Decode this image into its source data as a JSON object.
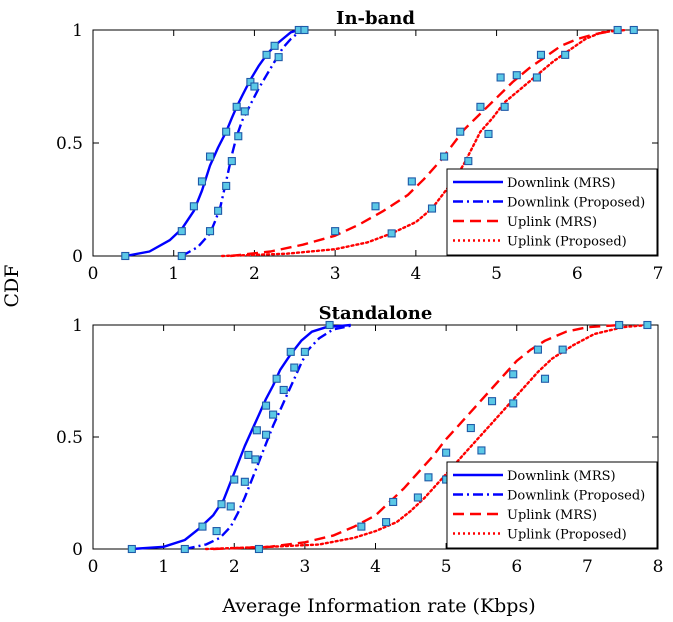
{
  "figure": {
    "ylabel": "CDF",
    "xlabel": "Average Information rate (Kbps)"
  },
  "chart_data": [
    {
      "type": "line",
      "title": "In-band",
      "xlabel": "",
      "ylabel": "CDF",
      "xlim": [
        0,
        7
      ],
      "ylim": [
        0,
        1
      ],
      "xticks": [
        0,
        1,
        2,
        3,
        4,
        5,
        6,
        7
      ],
      "yticks": [
        0,
        0.5,
        1
      ],
      "ytick_labels": [
        "0",
        "0.5",
        "1"
      ],
      "grid": false,
      "legend_position": "bottom-right",
      "marker_color": "#5bc8e6",
      "series": [
        {
          "name": "Downlink (MRS)",
          "color": "#0000ff",
          "style": "solid",
          "x": [
            0.4,
            0.7,
            0.95,
            1.1,
            1.25,
            1.35,
            1.45,
            1.55,
            1.65,
            1.72,
            1.78,
            1.85,
            1.95,
            2.05,
            2.15,
            2.25,
            2.35,
            2.45,
            2.55
          ],
          "y": [
            0.0,
            0.02,
            0.07,
            0.12,
            0.2,
            0.29,
            0.4,
            0.48,
            0.55,
            0.61,
            0.66,
            0.71,
            0.78,
            0.84,
            0.89,
            0.93,
            0.96,
            0.99,
            1.0
          ],
          "marker_x": [
            0.4,
            1.1,
            1.25,
            1.35,
            1.45,
            1.65,
            1.78,
            1.95,
            2.15,
            2.25,
            2.55
          ],
          "marker_y": [
            0.0,
            0.11,
            0.22,
            0.33,
            0.44,
            0.55,
            0.66,
            0.77,
            0.89,
            0.93,
            1.0
          ]
        },
        {
          "name": "Downlink (Proposed)",
          "color": "#0000ff",
          "style": "dashdot",
          "x": [
            1.1,
            1.3,
            1.45,
            1.52,
            1.58,
            1.63,
            1.68,
            1.73,
            1.78,
            1.85,
            1.95,
            2.05,
            2.15,
            2.25,
            2.35,
            2.45,
            2.55,
            2.62
          ],
          "y": [
            0.0,
            0.04,
            0.1,
            0.16,
            0.22,
            0.3,
            0.38,
            0.46,
            0.53,
            0.6,
            0.67,
            0.74,
            0.8,
            0.86,
            0.92,
            0.96,
            0.99,
            1.0
          ],
          "marker_x": [
            1.1,
            1.45,
            1.55,
            1.65,
            1.72,
            1.8,
            1.88,
            2.0,
            2.3,
            2.62
          ],
          "marker_y": [
            0.0,
            0.11,
            0.2,
            0.31,
            0.42,
            0.53,
            0.64,
            0.75,
            0.88,
            1.0
          ]
        },
        {
          "name": "Uplink (MRS)",
          "color": "#ff0000",
          "style": "dash",
          "x": [
            1.7,
            2.2,
            2.6,
            3.0,
            3.3,
            3.6,
            3.9,
            4.1,
            4.3,
            4.45,
            4.6,
            4.8,
            5.0,
            5.2,
            5.4,
            5.6,
            5.8,
            6.0,
            6.2,
            6.5
          ],
          "y": [
            0.0,
            0.02,
            0.05,
            0.09,
            0.14,
            0.2,
            0.27,
            0.34,
            0.42,
            0.49,
            0.56,
            0.63,
            0.7,
            0.77,
            0.83,
            0.88,
            0.93,
            0.96,
            0.98,
            1.0
          ],
          "marker_x": [
            3.0,
            3.5,
            3.95,
            4.35,
            4.55,
            4.8,
            5.05,
            5.25,
            5.55,
            6.5
          ],
          "marker_y": [
            0.11,
            0.22,
            0.33,
            0.44,
            0.55,
            0.66,
            0.79,
            0.8,
            0.89,
            1.0
          ]
        },
        {
          "name": "Uplink (Proposed)",
          "color": "#ff0000",
          "style": "dot",
          "x": [
            1.6,
            2.4,
            3.0,
            3.4,
            3.7,
            4.0,
            4.2,
            4.35,
            4.5,
            4.6,
            4.7,
            4.8,
            4.95,
            5.1,
            5.3,
            5.5,
            5.7,
            5.9,
            6.1,
            6.3,
            6.6
          ],
          "y": [
            0.0,
            0.01,
            0.03,
            0.06,
            0.1,
            0.15,
            0.21,
            0.28,
            0.35,
            0.41,
            0.48,
            0.55,
            0.61,
            0.68,
            0.74,
            0.8,
            0.86,
            0.91,
            0.96,
            0.99,
            1.0
          ],
          "marker_x": [
            3.7,
            4.2,
            4.45,
            4.65,
            4.9,
            5.1,
            5.5,
            5.85,
            6.7
          ],
          "marker_y": [
            0.1,
            0.21,
            0.32,
            0.42,
            0.54,
            0.66,
            0.79,
            0.89,
            1.0
          ]
        }
      ]
    },
    {
      "type": "line",
      "title": "Standalone",
      "xlabel": "Average Information rate (Kbps)",
      "ylabel": "CDF",
      "xlim": [
        0,
        8
      ],
      "ylim": [
        0,
        1
      ],
      "xticks": [
        0,
        1,
        2,
        3,
        4,
        5,
        6,
        7,
        8
      ],
      "yticks": [
        0,
        0.5,
        1
      ],
      "ytick_labels": [
        "0",
        "0.5",
        "1"
      ],
      "grid": false,
      "legend_position": "bottom-right",
      "marker_color": "#5bc8e6",
      "series": [
        {
          "name": "Downlink (MRS)",
          "color": "#0000ff",
          "style": "solid",
          "x": [
            0.55,
            1.0,
            1.3,
            1.5,
            1.7,
            1.85,
            1.95,
            2.05,
            2.15,
            2.25,
            2.35,
            2.45,
            2.55,
            2.65,
            2.8,
            2.95,
            3.1,
            3.3,
            3.65
          ],
          "y": [
            0.0,
            0.01,
            0.04,
            0.09,
            0.15,
            0.22,
            0.3,
            0.38,
            0.46,
            0.53,
            0.6,
            0.67,
            0.73,
            0.8,
            0.87,
            0.93,
            0.97,
            0.99,
            1.0
          ],
          "marker_x": [
            0.55,
            1.55,
            1.82,
            2.0,
            2.2,
            2.32,
            2.45,
            2.6,
            2.8,
            3.35
          ],
          "marker_y": [
            0.0,
            0.1,
            0.2,
            0.31,
            0.42,
            0.53,
            0.64,
            0.76,
            0.88,
            1.0
          ]
        },
        {
          "name": "Downlink (Proposed)",
          "color": "#0000ff",
          "style": "dashdot",
          "x": [
            1.3,
            1.6,
            1.8,
            1.95,
            2.05,
            2.15,
            2.25,
            2.35,
            2.45,
            2.55,
            2.65,
            2.75,
            2.85,
            2.95,
            3.05,
            3.2,
            3.4,
            3.7
          ],
          "y": [
            0.0,
            0.02,
            0.05,
            0.1,
            0.16,
            0.23,
            0.31,
            0.39,
            0.47,
            0.55,
            0.62,
            0.69,
            0.76,
            0.83,
            0.89,
            0.94,
            0.98,
            1.0
          ],
          "marker_x": [
            1.3,
            1.75,
            1.95,
            2.15,
            2.3,
            2.45,
            2.55,
            2.7,
            2.85,
            3.0
          ],
          "marker_y": [
            0.0,
            0.08,
            0.19,
            0.3,
            0.4,
            0.51,
            0.6,
            0.71,
            0.81,
            0.88
          ]
        },
        {
          "name": "Uplink (MRS)",
          "color": "#ff0000",
          "style": "dash",
          "x": [
            1.7,
            2.5,
            3.0,
            3.4,
            3.7,
            4.0,
            4.2,
            4.4,
            4.6,
            4.8,
            5.0,
            5.2,
            5.4,
            5.6,
            5.8,
            6.0,
            6.2,
            6.4,
            6.7,
            7.0,
            7.45
          ],
          "y": [
            0.0,
            0.01,
            0.03,
            0.06,
            0.1,
            0.15,
            0.21,
            0.27,
            0.34,
            0.41,
            0.49,
            0.56,
            0.63,
            0.7,
            0.77,
            0.84,
            0.89,
            0.93,
            0.97,
            0.99,
            1.0
          ],
          "marker_x": [
            3.8,
            4.25,
            4.75,
            5.0,
            5.35,
            5.65,
            5.95,
            6.3,
            7.45
          ],
          "marker_y": [
            0.1,
            0.21,
            0.32,
            0.43,
            0.54,
            0.66,
            0.78,
            0.89,
            1.0
          ]
        },
        {
          "name": "Uplink (Proposed)",
          "color": "#ff0000",
          "style": "dot",
          "x": [
            1.6,
            2.5,
            3.2,
            3.7,
            4.0,
            4.3,
            4.5,
            4.7,
            4.9,
            5.1,
            5.3,
            5.5,
            5.7,
            5.9,
            6.1,
            6.3,
            6.5,
            6.8,
            7.1,
            7.5,
            7.85
          ],
          "y": [
            0.0,
            0.01,
            0.02,
            0.05,
            0.08,
            0.12,
            0.17,
            0.23,
            0.3,
            0.37,
            0.44,
            0.51,
            0.58,
            0.65,
            0.72,
            0.79,
            0.85,
            0.91,
            0.96,
            0.99,
            1.0
          ],
          "marker_x": [
            2.35,
            4.15,
            4.6,
            5.0,
            5.5,
            5.95,
            6.4,
            6.65,
            7.85
          ],
          "marker_y": [
            0.0,
            0.12,
            0.23,
            0.31,
            0.44,
            0.65,
            0.76,
            0.89,
            1.0
          ]
        }
      ]
    }
  ]
}
